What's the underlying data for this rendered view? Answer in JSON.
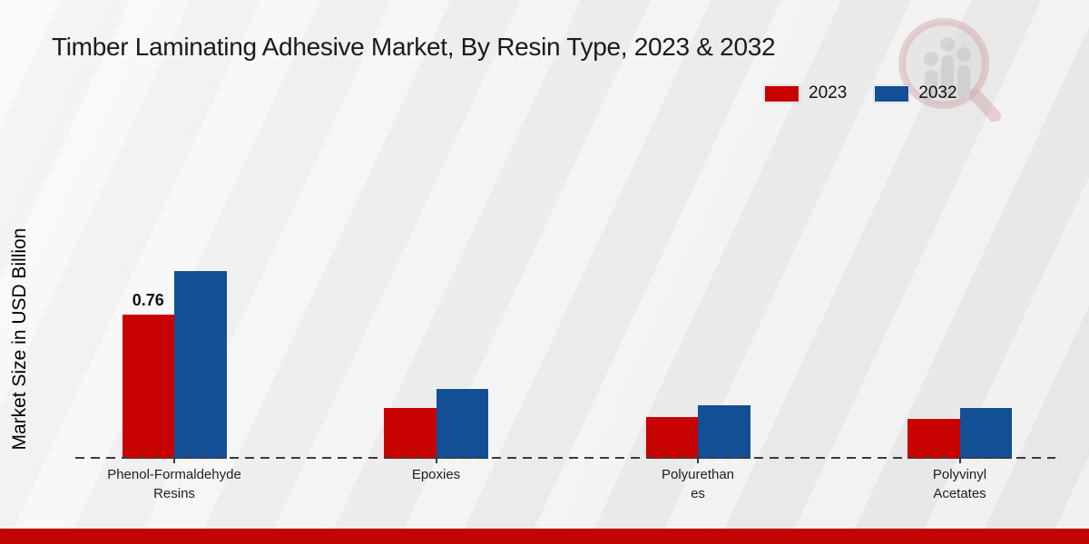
{
  "title": "Timber Laminating Adhesive Market, By Resin Type, 2023 & 2032",
  "y_axis_label": "Market Size in USD Billion",
  "legend": {
    "position": "top-right",
    "items": [
      {
        "label": "2023",
        "color": "#c80101"
      },
      {
        "label": "2032",
        "color": "#124f94"
      }
    ]
  },
  "watermark": {
    "name": "market-research-magnifier-logo"
  },
  "colors": {
    "red": "#c80101",
    "blue": "#124f94",
    "footer": "#c10404",
    "dash": "#3b3b3b",
    "text": "#1b1b1b"
  },
  "chart_data": {
    "type": "bar",
    "title": "Timber Laminating Adhesive Market, By Resin Type, 2023 & 2032",
    "categories": [
      "Phenol-Formaldehyde Resins",
      "Epoxies",
      "Polyurethanes",
      "Polyvinyl Acetates"
    ],
    "category_label_lines": [
      [
        "Phenol-Formaldehyde",
        "Resins"
      ],
      [
        "Epoxies"
      ],
      [
        "Polyurethan",
        "es"
      ],
      [
        "Polyvinyl",
        "Acetates"
      ]
    ],
    "series": [
      {
        "name": "2023",
        "color": "#c80101",
        "values": [
          0.76,
          0.27,
          0.22,
          0.21
        ]
      },
      {
        "name": "2032",
        "color": "#124f94",
        "values": [
          0.99,
          0.37,
          0.28,
          0.27
        ]
      }
    ],
    "data_labels": [
      {
        "series": "2023",
        "category_index": 0,
        "text": "0.76"
      }
    ],
    "xlabel": "",
    "ylabel": "Market Size in USD Billion",
    "ylim": [
      0,
      1.1
    ],
    "grid": false,
    "baseline_style": "dashed",
    "legend_position": "top-right"
  }
}
